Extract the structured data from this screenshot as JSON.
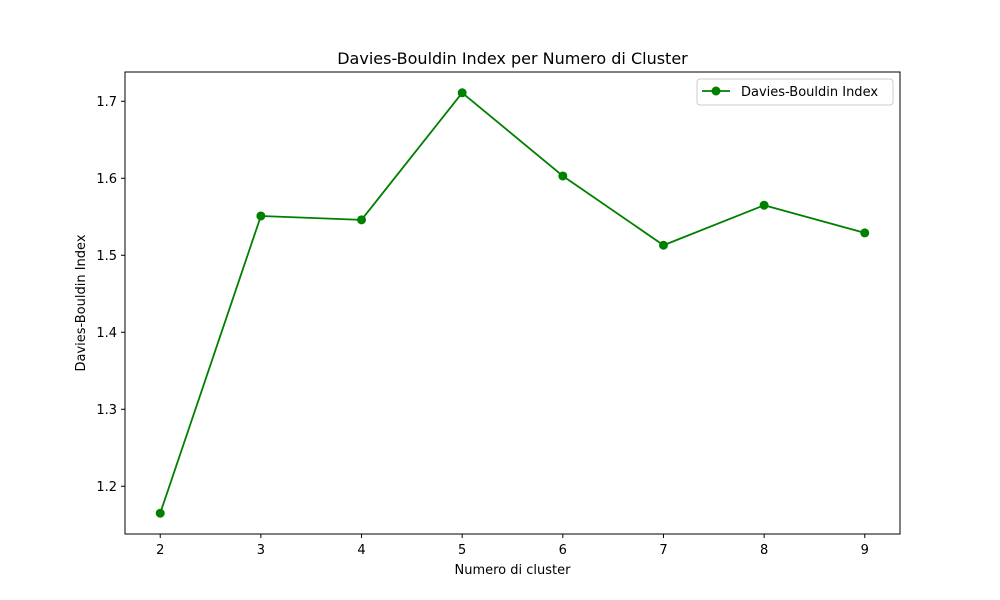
{
  "chart_data": {
    "type": "line",
    "title": "Davies-Bouldin Index per Numero di Cluster",
    "xlabel": "Numero di cluster",
    "ylabel": "Davies-Bouldin Index",
    "x": [
      2,
      3,
      4,
      5,
      6,
      7,
      8,
      9
    ],
    "x_tick_labels": [
      "2",
      "3",
      "4",
      "5",
      "6",
      "7",
      "8",
      "9"
    ],
    "y_ticks": [
      1.2,
      1.3,
      1.4,
      1.5,
      1.6,
      1.7
    ],
    "y_tick_labels": [
      "1.2",
      "1.3",
      "1.4",
      "1.5",
      "1.6",
      "1.7"
    ],
    "xlim": [
      1.65,
      9.35
    ],
    "ylim": [
      1.138,
      1.738
    ],
    "grid": false,
    "legend_position": "top-right",
    "series": [
      {
        "name": "Davies-Bouldin Index",
        "color": "#008000",
        "marker": "circle",
        "values": [
          1.165,
          1.551,
          1.546,
          1.711,
          1.603,
          1.513,
          1.565,
          1.529
        ]
      }
    ]
  }
}
